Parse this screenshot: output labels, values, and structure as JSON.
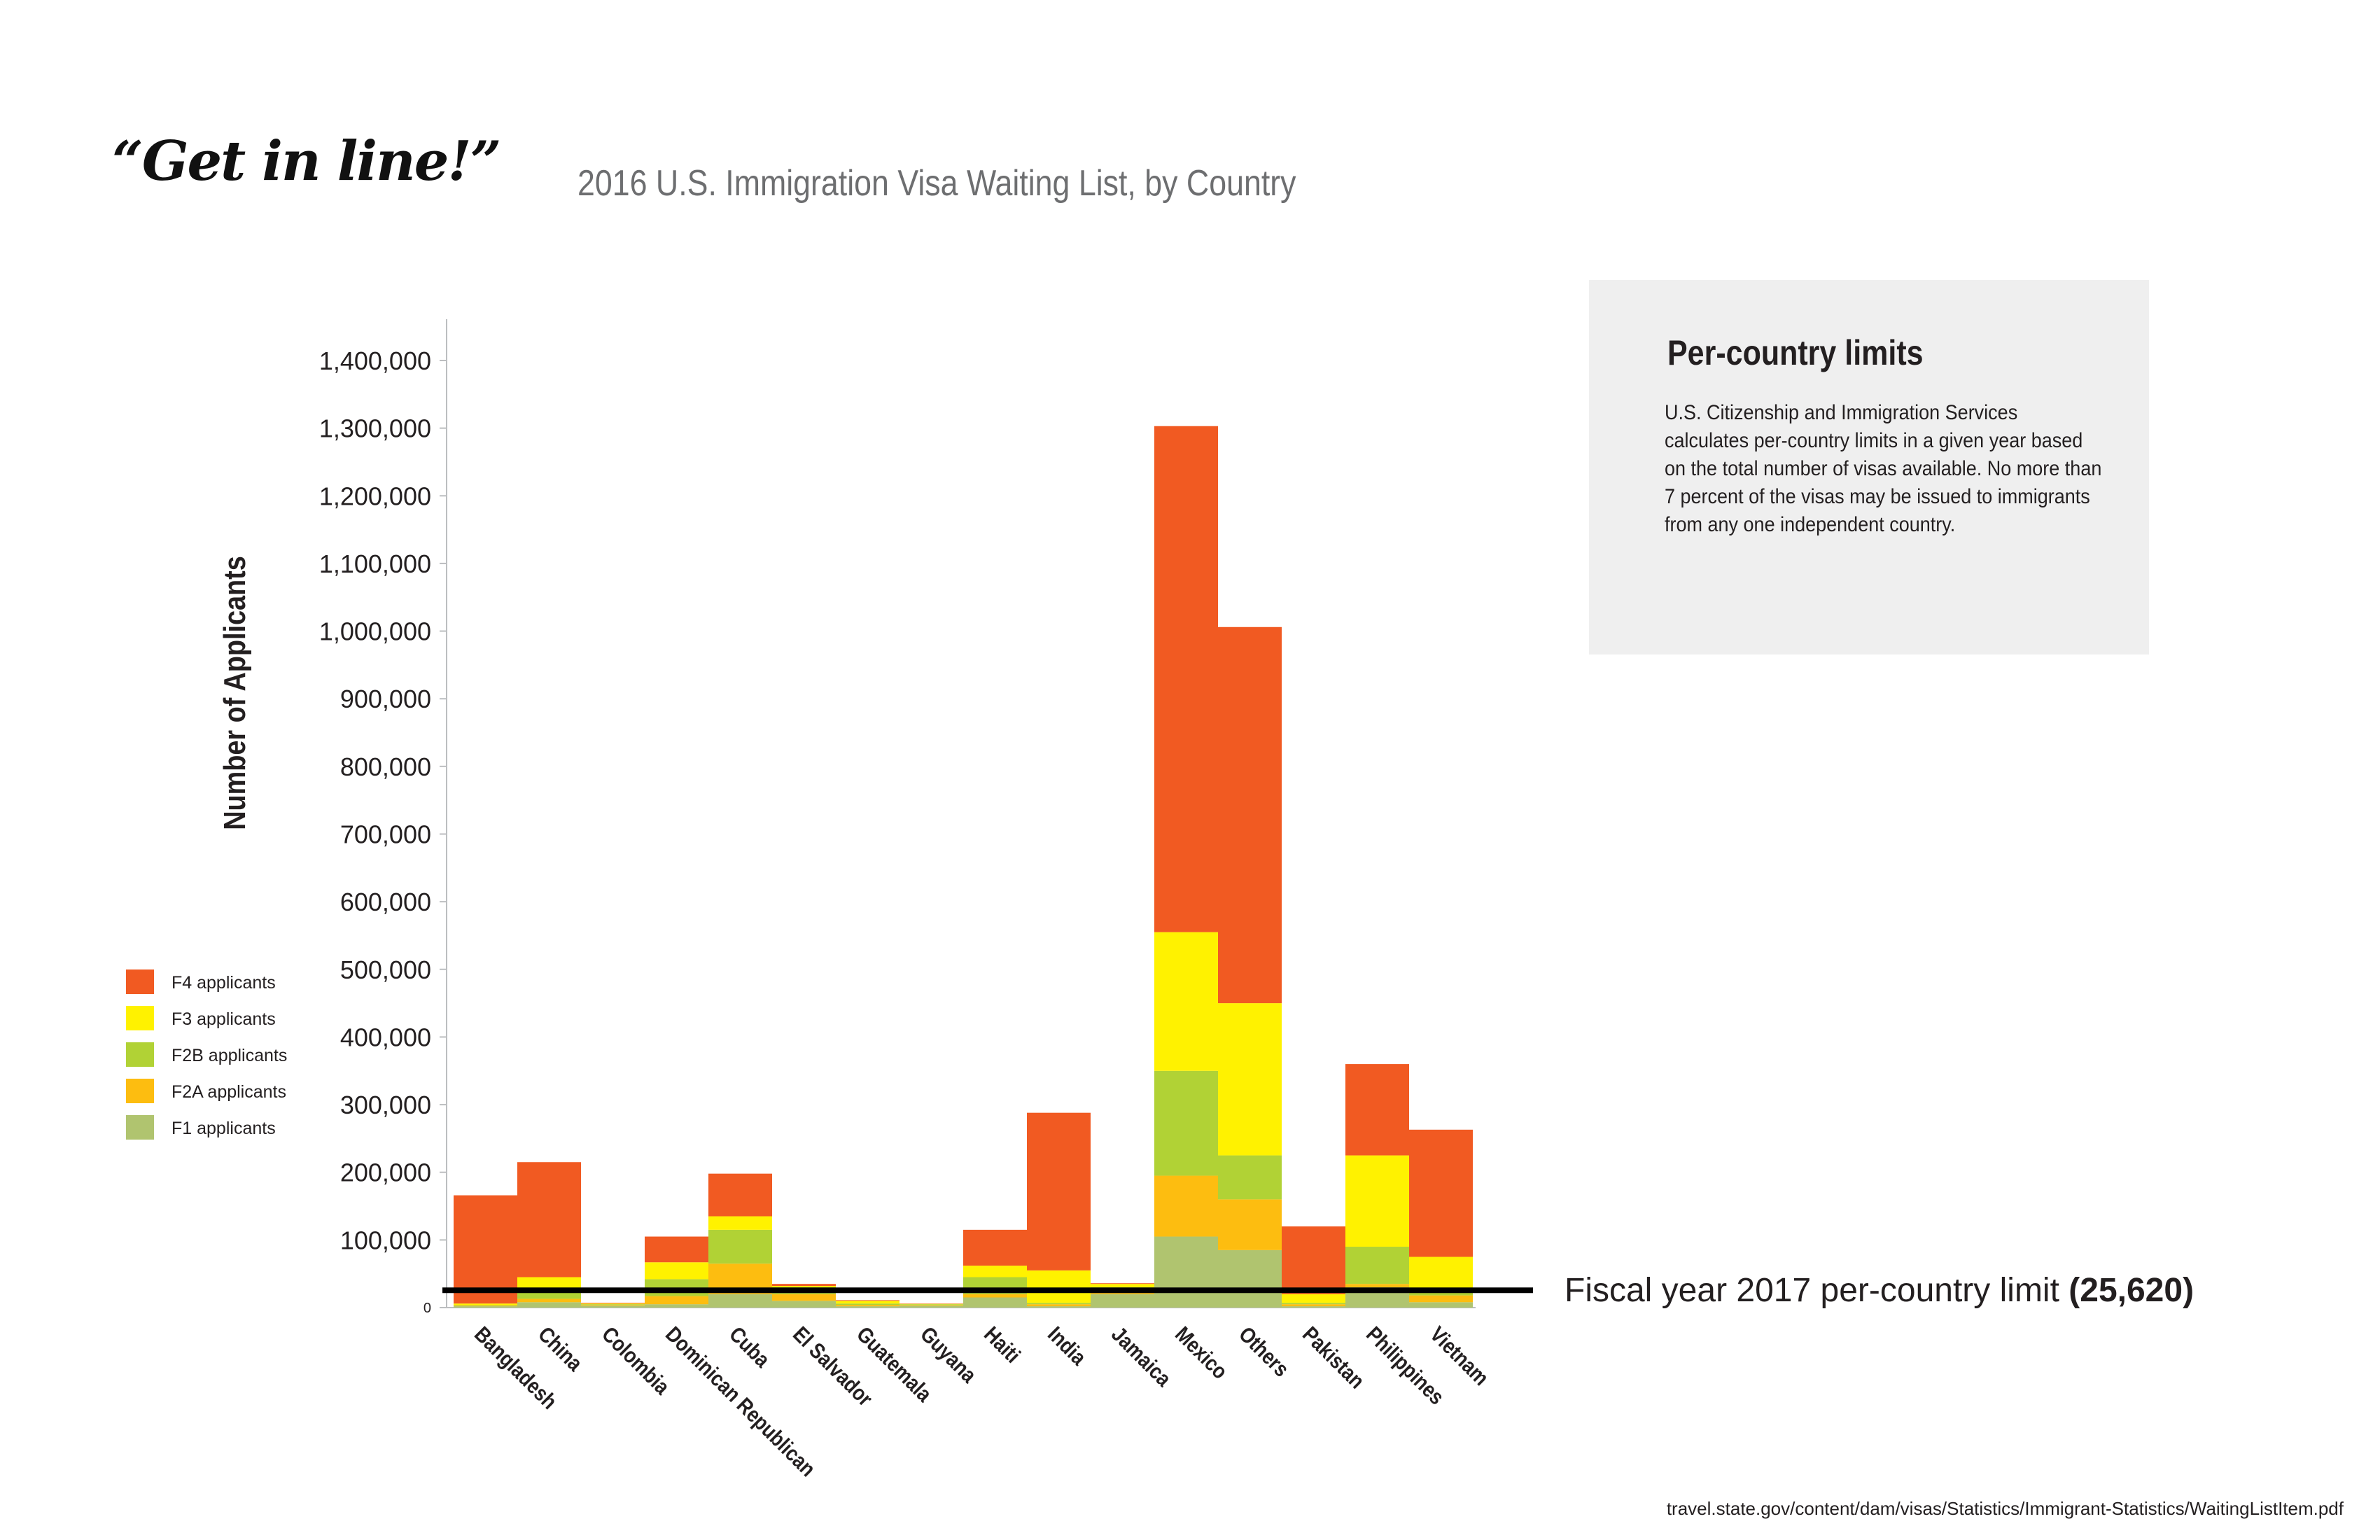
{
  "headline": "“Get in line!”",
  "chart_data": {
    "type": "bar",
    "stacked": true,
    "title": "2016 U.S. Immigration Visa Waiting List, by Country",
    "ylabel": "Number of Applicants",
    "xlabel": "",
    "ylim": [
      0,
      1400000
    ],
    "yticks": [
      0,
      100000,
      200000,
      300000,
      400000,
      500000,
      600000,
      700000,
      800000,
      900000,
      1000000,
      1100000,
      1200000,
      1300000,
      1400000
    ],
    "ytick_labels": [
      "0",
      "100,000",
      "200,000",
      "300,000",
      "400,000",
      "500,000",
      "600,000",
      "700,000",
      "800,000",
      "900,000",
      "1,000,000",
      "1,100,000",
      "1,200,000",
      "1,300,000",
      "1,400,000"
    ],
    "categories": [
      "Bangladesh",
      "China",
      "Colombia",
      "Dominican Republican",
      "Cuba",
      "El Salvador",
      "Guatemala",
      "Guyana",
      "Haiti",
      "India",
      "Jamaica",
      "Mexico",
      "Others",
      "Pakistan",
      "Philippines",
      "Vietnam"
    ],
    "series": [
      {
        "name": "F1 applicants",
        "color": "#b0c46f",
        "values": [
          2000,
          8000,
          3000,
          5000,
          20000,
          10000,
          2000,
          3000,
          15000,
          2000,
          20000,
          105000,
          85000,
          2000,
          30000,
          8000
        ]
      },
      {
        "name": "F2A applicants",
        "color": "#fdbd10",
        "values": [
          1000,
          5000,
          1000,
          12000,
          45000,
          10000,
          2000,
          1000,
          5000,
          3000,
          5000,
          90000,
          75000,
          3000,
          5000,
          10000
        ]
      },
      {
        "name": "F2B applicants",
        "color": "#b1d235",
        "values": [
          1000,
          12000,
          1000,
          25000,
          50000,
          10000,
          2000,
          1000,
          25000,
          2000,
          5000,
          155000,
          65000,
          2000,
          55000,
          5000
        ]
      },
      {
        "name": "F3 applicants",
        "color": "#fff200",
        "values": [
          2000,
          20000,
          1000,
          25000,
          20000,
          2000,
          4000,
          500,
          17000,
          48000,
          5000,
          205000,
          225000,
          13000,
          135000,
          52000
        ]
      },
      {
        "name": "F4 applicants",
        "color": "#f15a22",
        "values": [
          160000,
          170000,
          1000,
          38000,
          63000,
          3000,
          1000,
          500,
          53000,
          233000,
          1000,
          748000,
          556000,
          100000,
          135000,
          188000
        ]
      }
    ],
    "legend_position": "left",
    "reference_line": {
      "value": 25620,
      "label": "Fiscal year 2017 per-country limit",
      "value_label": "(25,620)"
    },
    "grid": false
  },
  "info_box": {
    "title": "Per-country limits",
    "body": "U.S. Citizenship and Immigration Services calculates per-country limits in a given year based on the total number of visas available. No more than 7 percent of the visas may be issued to immigrants from any one independent country."
  },
  "source": "travel.state.gov/content/dam/visas/Statistics/Immigrant-Statistics/WaitingListItem.pdf"
}
